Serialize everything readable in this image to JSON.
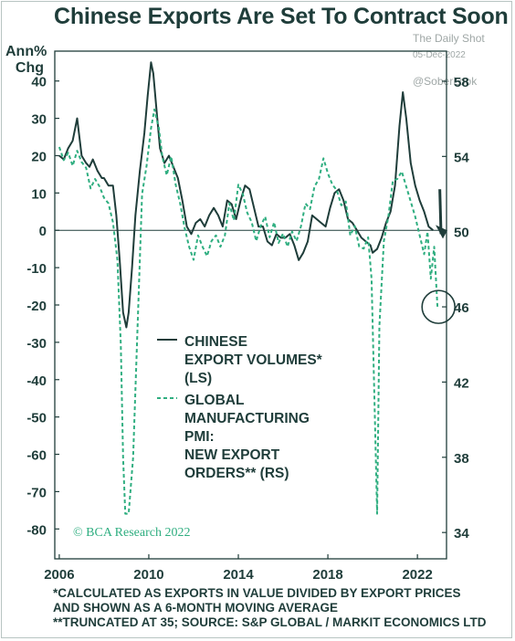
{
  "title": "Chinese Exports Are Set To Contract Soon",
  "watermark": {
    "source": "The Daily Shot",
    "date": "05-Dec-2022",
    "handle": "@SoberLook"
  },
  "left_axis_label": [
    "Ann%",
    "Chg"
  ],
  "credit": "© BCA Research 2022",
  "footnotes": [
    "*CALCULATED AS EXPORTS IN VALUE DIVIDED BY EXPORT PRICES",
    "AND SHOWN AS A 6-MONTH MOVING AVERAGE",
    "**TRUNCATED AT 35; SOURCE: S&P GLOBAL / MARKIT ECONOMICS LTD"
  ],
  "colors": {
    "text": "#1f3d3a",
    "series_1": "#1f3d3a",
    "series_2": "#2fae80",
    "zero_line": "#1f3d3a"
  },
  "chart_data": {
    "type": "line",
    "x_ticks": [
      "2006",
      "2010",
      "2014",
      "2018",
      "2022"
    ],
    "xlim": [
      2005.8,
      2023.3
    ],
    "y_left": {
      "ticks": [
        40,
        30,
        20,
        10,
        0,
        -10,
        -20,
        -30,
        -40,
        -50,
        -60,
        -70,
        -80
      ],
      "lim": [
        -88,
        48
      ]
    },
    "y_right": {
      "ticks": [
        58,
        54,
        50,
        46,
        42,
        38,
        34
      ],
      "lim": [
        32.6,
        59.6
      ]
    },
    "legend": [
      {
        "lines": [
          "CHINESE",
          "EXPORT VOLUMES*",
          "(LS)"
        ],
        "style": "solid"
      },
      {
        "lines": [
          "GLOBAL",
          "MANUFACTURING",
          "PMI:",
          "NEW EXPORT",
          "ORDERS** (RS)"
        ],
        "style": "dashed"
      }
    ],
    "series": [
      {
        "name": "CHINESE EXPORT VOLUMES* (LS)",
        "axis": "left",
        "style": "solid",
        "x": [
          2006.0,
          2006.2,
          2006.4,
          2006.6,
          2006.8,
          2007.0,
          2007.2,
          2007.35,
          2007.5,
          2007.7,
          2007.9,
          2008.0,
          2008.2,
          2008.4,
          2008.55,
          2008.7,
          2008.85,
          2009.0,
          2009.1,
          2009.25,
          2009.4,
          2009.6,
          2009.8,
          2009.95,
          2010.1,
          2010.2,
          2010.35,
          2010.5,
          2010.7,
          2010.9,
          2011.1,
          2011.3,
          2011.5,
          2011.7,
          2011.9,
          2012.1,
          2012.3,
          2012.5,
          2012.7,
          2012.9,
          2013.1,
          2013.3,
          2013.5,
          2013.7,
          2013.9,
          2014.1,
          2014.3,
          2014.5,
          2014.7,
          2014.9,
          2015.1,
          2015.3,
          2015.5,
          2015.7,
          2015.9,
          2016.1,
          2016.3,
          2016.5,
          2016.7,
          2016.9,
          2017.1,
          2017.3,
          2017.5,
          2017.7,
          2017.9,
          2018.1,
          2018.3,
          2018.5,
          2018.7,
          2018.9,
          2019.1,
          2019.3,
          2019.5,
          2019.7,
          2019.9,
          2020.0,
          2020.2,
          2020.4,
          2020.6,
          2020.8,
          2021.0,
          2021.2,
          2021.35,
          2021.5,
          2021.7,
          2021.9,
          2022.1,
          2022.3,
          2022.5,
          2022.7
        ],
        "values": [
          20,
          19,
          22,
          24,
          30,
          20,
          18,
          17,
          19,
          16,
          14,
          14,
          12,
          12,
          4,
          -8,
          -22,
          -26,
          -22,
          -10,
          4,
          16,
          26,
          36,
          45,
          42,
          32,
          22,
          18,
          20,
          17,
          14,
          8,
          1,
          -1,
          2,
          3,
          1,
          4,
          6,
          4,
          1,
          8,
          7,
          3,
          8,
          12,
          11,
          6,
          1,
          1,
          -3,
          -4,
          -1,
          -2,
          -2,
          -1,
          -4,
          -8,
          -6,
          -3,
          4,
          3,
          2,
          1,
          6,
          10,
          11,
          8,
          3,
          2,
          0,
          -2,
          -3,
          -4,
          -6,
          -5,
          -2,
          2,
          5,
          12,
          28,
          37,
          30,
          18,
          12,
          8,
          5,
          1,
          0
        ]
      },
      {
        "name": "GLOBAL MANUFACTURING PMI: NEW EXPORT ORDERS** (RS)",
        "axis": "right",
        "style": "dashed",
        "x": [
          2006.0,
          2006.2,
          2006.4,
          2006.6,
          2006.8,
          2007.0,
          2007.2,
          2007.4,
          2007.6,
          2007.8,
          2008.0,
          2008.2,
          2008.4,
          2008.6,
          2008.75,
          2008.85,
          2008.95,
          2009.1,
          2009.3,
          2009.5,
          2009.7,
          2009.9,
          2010.1,
          2010.25,
          2010.45,
          2010.6,
          2010.8,
          2011.0,
          2011.2,
          2011.4,
          2011.6,
          2011.8,
          2012.0,
          2012.2,
          2012.4,
          2012.6,
          2012.8,
          2013.0,
          2013.2,
          2013.4,
          2013.6,
          2013.8,
          2014.0,
          2014.2,
          2014.4,
          2014.6,
          2014.8,
          2015.0,
          2015.2,
          2015.4,
          2015.6,
          2015.8,
          2016.0,
          2016.2,
          2016.4,
          2016.6,
          2016.8,
          2017.0,
          2017.2,
          2017.4,
          2017.6,
          2017.8,
          2018.0,
          2018.2,
          2018.4,
          2018.6,
          2018.8,
          2019.0,
          2019.2,
          2019.4,
          2019.6,
          2019.8,
          2019.95,
          2020.1,
          2020.2,
          2020.3,
          2020.5,
          2020.7,
          2020.9,
          2021.1,
          2021.3,
          2021.5,
          2021.7,
          2021.9,
          2022.1,
          2022.3,
          2022.45,
          2022.6,
          2022.75,
          2022.9
        ],
        "values": [
          54.5,
          53.8,
          54.2,
          53.5,
          54.3,
          53.7,
          53.4,
          52.3,
          52.8,
          52.4,
          51.8,
          51.5,
          50.5,
          48.5,
          44,
          38,
          35,
          35,
          38,
          45,
          52,
          53.5,
          55.5,
          56.5,
          55.5,
          54,
          53,
          54,
          52.5,
          51.5,
          50.2,
          49.2,
          48.5,
          49.8,
          49.2,
          48.7,
          49.5,
          49.8,
          49.2,
          49.8,
          51.5,
          50.6,
          52.5,
          52,
          51,
          50.5,
          49.5,
          50.3,
          50.8,
          49.7,
          50.5,
          49.4,
          49.9,
          49.2,
          50,
          49.5,
          50.3,
          51.5,
          51.2,
          52.4,
          52.8,
          53.9,
          53.1,
          52.5,
          52.2,
          51.4,
          51.6,
          49.8,
          50.3,
          49.2,
          49.1,
          49.7,
          47.5,
          40,
          35,
          45,
          49.5,
          50.8,
          52.7,
          52.8,
          53.2,
          52.4,
          51.6,
          50.8,
          49.8,
          48.8,
          50,
          47.5,
          49.2,
          45.9
        ]
      }
    ]
  }
}
